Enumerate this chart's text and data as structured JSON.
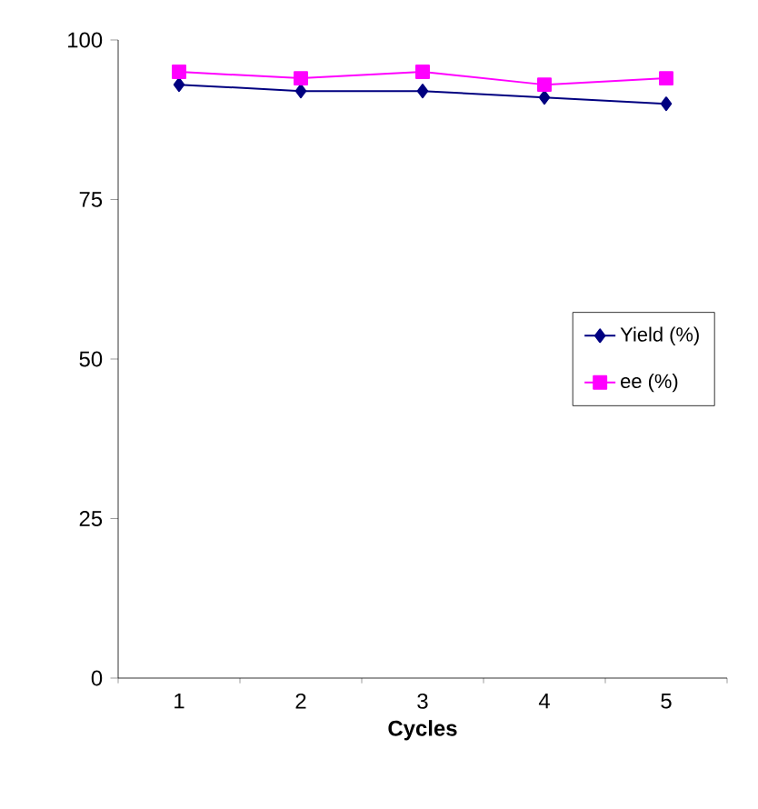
{
  "chart_data": {
    "type": "line",
    "xlabel": "Cycles",
    "categories": [
      "1",
      "2",
      "3",
      "4",
      "5"
    ],
    "series": [
      {
        "name": "Yield (%)",
        "color": "#000080",
        "marker": "diamond",
        "values": [
          93,
          92,
          92,
          91,
          90
        ]
      },
      {
        "name": "ee (%)",
        "color": "#ff00ff",
        "marker": "square",
        "values": [
          95,
          94,
          95,
          93,
          94
        ]
      }
    ],
    "ylim": [
      0,
      100
    ],
    "yticks": [
      0,
      25,
      50,
      75,
      100
    ],
    "grid": false,
    "legend": "right",
    "line_style": "solid"
  }
}
